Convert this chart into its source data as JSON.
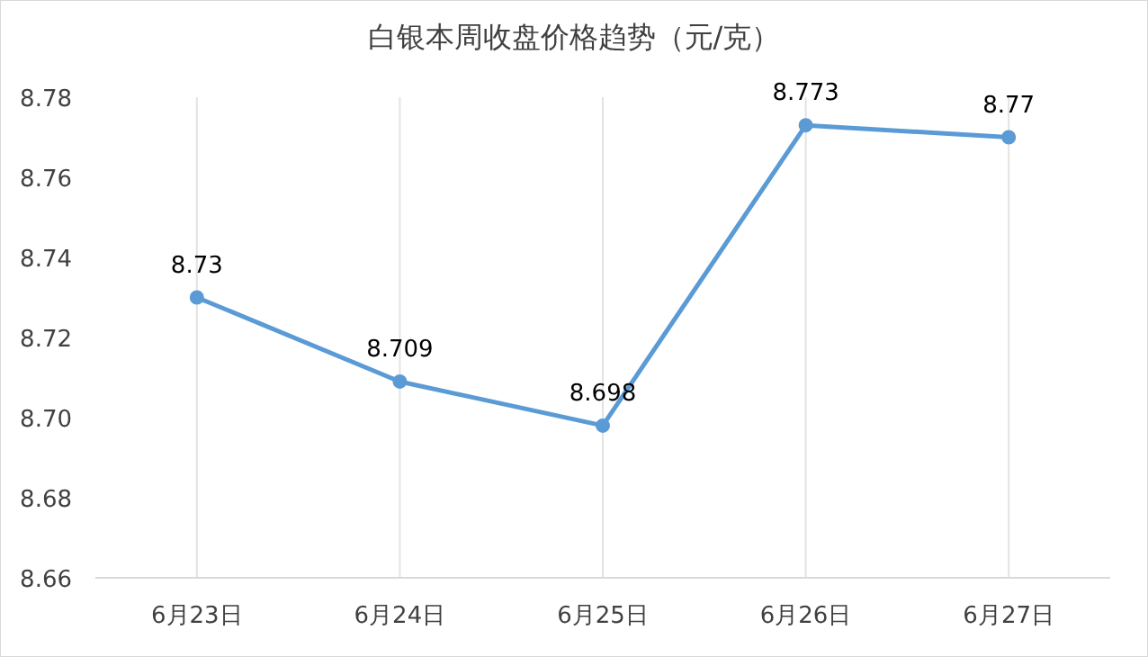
{
  "chart_data": {
    "type": "line",
    "title": "白银本周收盘价格趋势（元/克）",
    "categories": [
      "6月23日",
      "6月24日",
      "6月25日",
      "6月26日",
      "6月27日"
    ],
    "values": [
      8.73,
      8.709,
      8.698,
      8.773,
      8.77
    ],
    "color": "#5b9bd5",
    "ylim": [
      8.66,
      8.78
    ],
    "yticks": [
      8.66,
      8.68,
      {
        "value": 8.7,
        "label": "8.70"
      },
      8.72,
      8.74,
      8.76,
      8.78
    ],
    "grid": "x",
    "marker": "circle",
    "line_style": "solid",
    "data_labels": true
  }
}
